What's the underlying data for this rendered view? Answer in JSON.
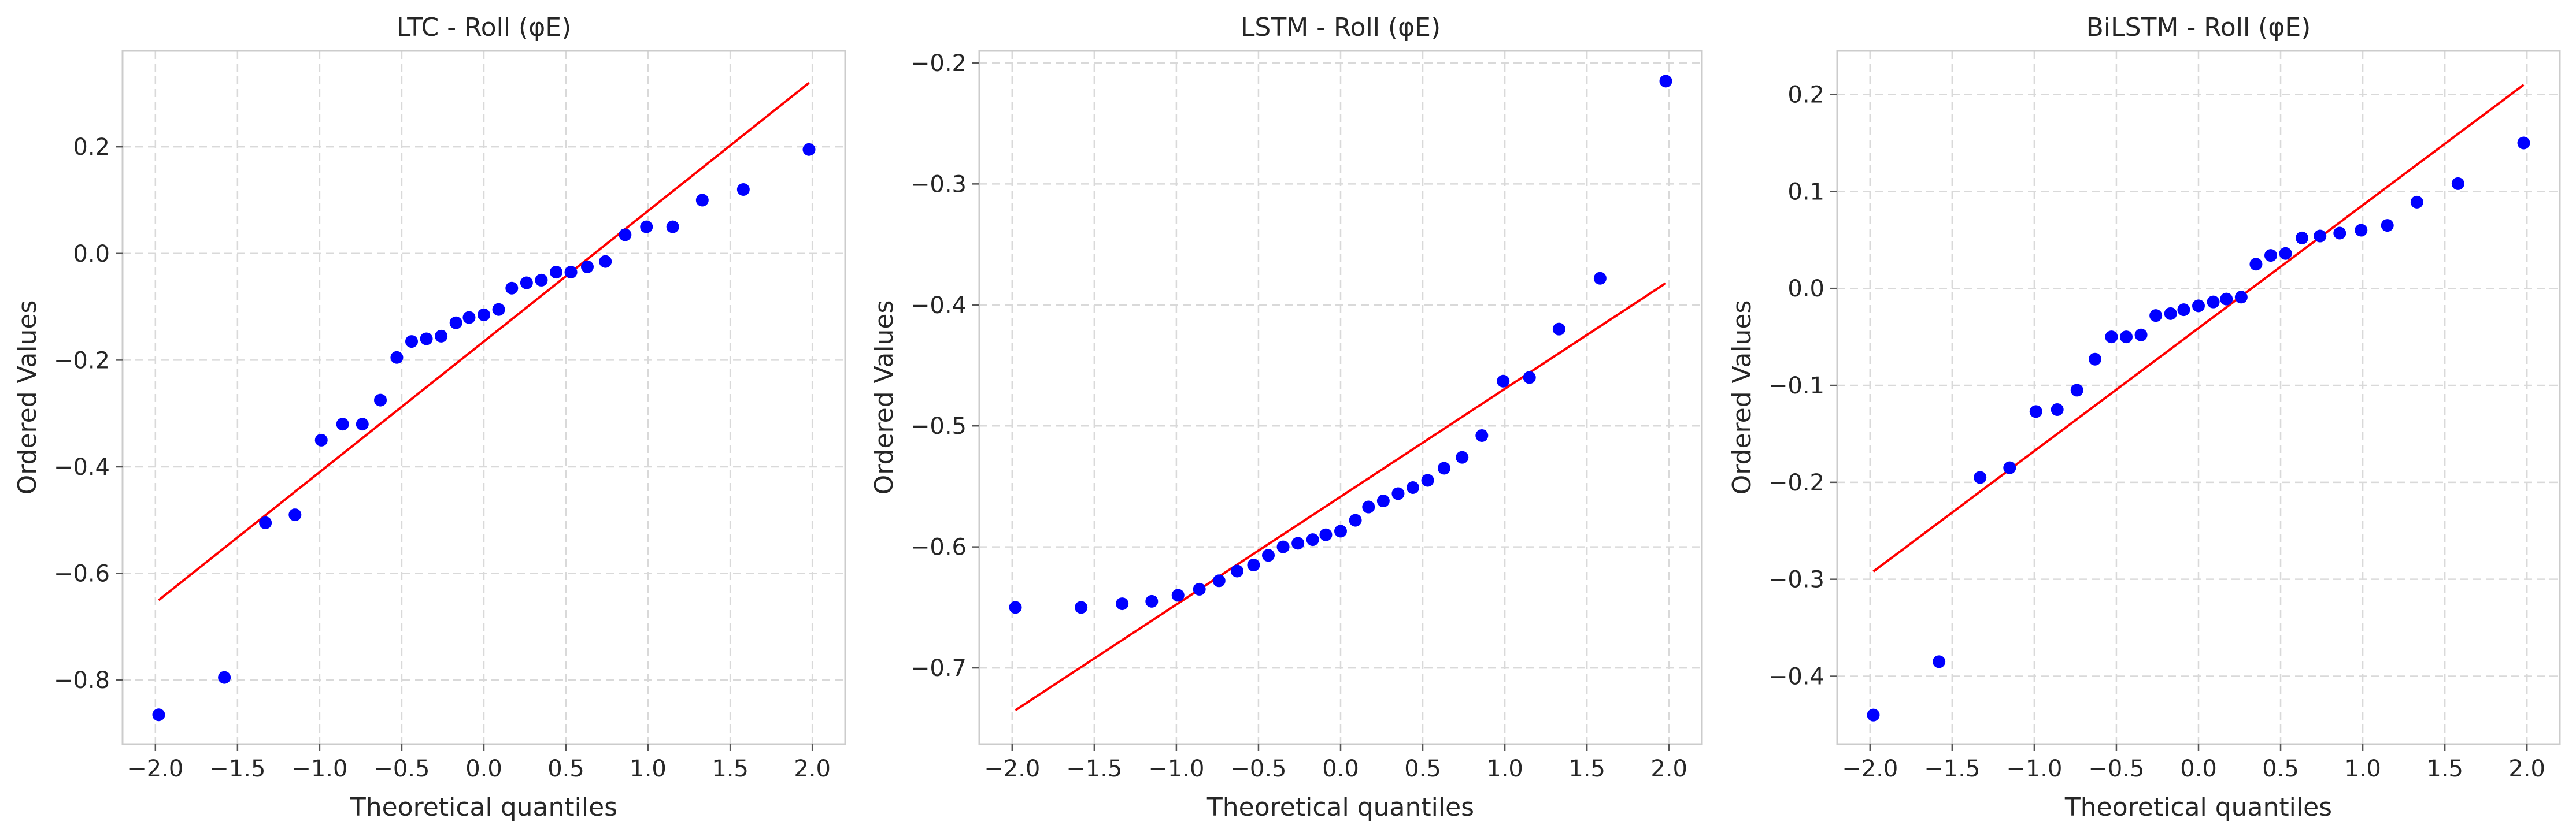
{
  "chart_data": [
    {
      "type": "scatter",
      "title": "LTC - Roll (φE)",
      "xlabel": "Theoretical quantiles",
      "ylabel": "Ordered Values",
      "xlim": [
        -2.2,
        2.2
      ],
      "ylim": [
        -0.92,
        0.38
      ],
      "xticks": [
        -2.0,
        -1.5,
        -1.0,
        -0.5,
        0.0,
        0.5,
        1.0,
        1.5,
        2.0
      ],
      "yticks": [
        -0.8,
        -0.6,
        -0.4,
        -0.2,
        0.0,
        0.2
      ],
      "xtick_labels": [
        "−2.0",
        "−1.5",
        "−1.0",
        "−0.5",
        "0.0",
        "0.5",
        "1.0",
        "1.5",
        "2.0"
      ],
      "ytick_labels": [
        "−0.8",
        "−0.6",
        "−0.4",
        "−0.2",
        "0.0",
        "0.2"
      ],
      "grid": true,
      "point_color": "#0000ff",
      "line_color": "#ff0000",
      "fit_line": {
        "x": [
          -1.98,
          1.98
        ],
        "y": [
          -0.65,
          0.32
        ]
      },
      "x": [
        -1.98,
        -1.58,
        -1.33,
        -1.15,
        -0.99,
        -0.86,
        -0.74,
        -0.63,
        -0.53,
        -0.44,
        -0.35,
        -0.26,
        -0.17,
        -0.09,
        0.0,
        0.09,
        0.17,
        0.26,
        0.35,
        0.44,
        0.53,
        0.63,
        0.74,
        0.86,
        0.99,
        1.15,
        1.33,
        1.58,
        1.98
      ],
      "y": [
        -0.865,
        -0.795,
        -0.505,
        -0.49,
        -0.35,
        -0.32,
        -0.32,
        -0.275,
        -0.195,
        -0.165,
        -0.16,
        -0.155,
        -0.13,
        -0.12,
        -0.115,
        -0.105,
        -0.065,
        -0.055,
        -0.05,
        -0.035,
        -0.035,
        -0.025,
        -0.015,
        0.035,
        0.05,
        0.05,
        0.1,
        0.12,
        0.195
      ]
    },
    {
      "type": "scatter",
      "title": "LSTM - Roll (φE)",
      "xlabel": "Theoretical quantiles",
      "ylabel": "Ordered Values",
      "xlim": [
        -2.2,
        2.2
      ],
      "ylim": [
        -0.763,
        -0.19
      ],
      "xticks": [
        -2.0,
        -1.5,
        -1.0,
        -0.5,
        0.0,
        0.5,
        1.0,
        1.5,
        2.0
      ],
      "yticks": [
        -0.7,
        -0.6,
        -0.5,
        -0.4,
        -0.3,
        -0.2
      ],
      "xtick_labels": [
        "−2.0",
        "−1.5",
        "−1.0",
        "−0.5",
        "0.0",
        "0.5",
        "1.0",
        "1.5",
        "2.0"
      ],
      "ytick_labels": [
        "−0.7",
        "−0.6",
        "−0.5",
        "−0.4",
        "−0.3",
        "−0.2"
      ],
      "grid": true,
      "point_color": "#0000ff",
      "line_color": "#ff0000",
      "fit_line": {
        "x": [
          -1.98,
          1.98
        ],
        "y": [
          -0.735,
          -0.382
        ]
      },
      "x": [
        -1.98,
        -1.58,
        -1.33,
        -1.15,
        -0.99,
        -0.86,
        -0.74,
        -0.63,
        -0.53,
        -0.44,
        -0.35,
        -0.26,
        -0.17,
        -0.09,
        0.0,
        0.09,
        0.17,
        0.26,
        0.35,
        0.44,
        0.53,
        0.63,
        0.74,
        0.86,
        0.99,
        1.15,
        1.33,
        1.58,
        1.98
      ],
      "y": [
        -0.65,
        -0.65,
        -0.647,
        -0.645,
        -0.64,
        -0.635,
        -0.628,
        -0.62,
        -0.615,
        -0.607,
        -0.6,
        -0.597,
        -0.594,
        -0.59,
        -0.587,
        -0.578,
        -0.567,
        -0.562,
        -0.556,
        -0.551,
        -0.545,
        -0.535,
        -0.526,
        -0.508,
        -0.463,
        -0.46,
        -0.42,
        -0.378,
        -0.215
      ]
    },
    {
      "type": "scatter",
      "title": "BiLSTM - Roll (φE)",
      "xlabel": "Theoretical quantiles",
      "ylabel": "Ordered Values",
      "xlim": [
        -2.2,
        2.2
      ],
      "ylim": [
        -0.47,
        0.245
      ],
      "xticks": [
        -2.0,
        -1.5,
        -1.0,
        -0.5,
        0.0,
        0.5,
        1.0,
        1.5,
        2.0
      ],
      "yticks": [
        -0.4,
        -0.3,
        -0.2,
        -0.1,
        0.0,
        0.1,
        0.2
      ],
      "xtick_labels": [
        "−2.0",
        "−1.5",
        "−1.0",
        "−0.5",
        "0.0",
        "0.5",
        "1.0",
        "1.5",
        "2.0"
      ],
      "ytick_labels": [
        "−0.4",
        "−0.3",
        "−0.2",
        "−0.1",
        "0.0",
        "0.1",
        "0.2"
      ],
      "grid": true,
      "point_color": "#0000ff",
      "line_color": "#ff0000",
      "fit_line": {
        "x": [
          -1.98,
          1.98
        ],
        "y": [
          -0.292,
          0.21
        ]
      },
      "x": [
        -1.98,
        -1.58,
        -1.33,
        -1.15,
        -0.99,
        -0.86,
        -0.74,
        -0.63,
        -0.53,
        -0.44,
        -0.35,
        -0.26,
        -0.17,
        -0.09,
        0.0,
        0.09,
        0.17,
        0.26,
        0.35,
        0.44,
        0.53,
        0.63,
        0.74,
        0.86,
        0.99,
        1.15,
        1.33,
        1.58,
        1.98
      ],
      "y": [
        -0.44,
        -0.385,
        -0.195,
        -0.185,
        -0.127,
        -0.125,
        -0.105,
        -0.073,
        -0.05,
        -0.05,
        -0.048,
        -0.028,
        -0.026,
        -0.022,
        -0.018,
        -0.014,
        -0.011,
        -0.009,
        0.025,
        0.034,
        0.036,
        0.052,
        0.054,
        0.057,
        0.06,
        0.065,
        0.089,
        0.108,
        0.15
      ]
    }
  ]
}
